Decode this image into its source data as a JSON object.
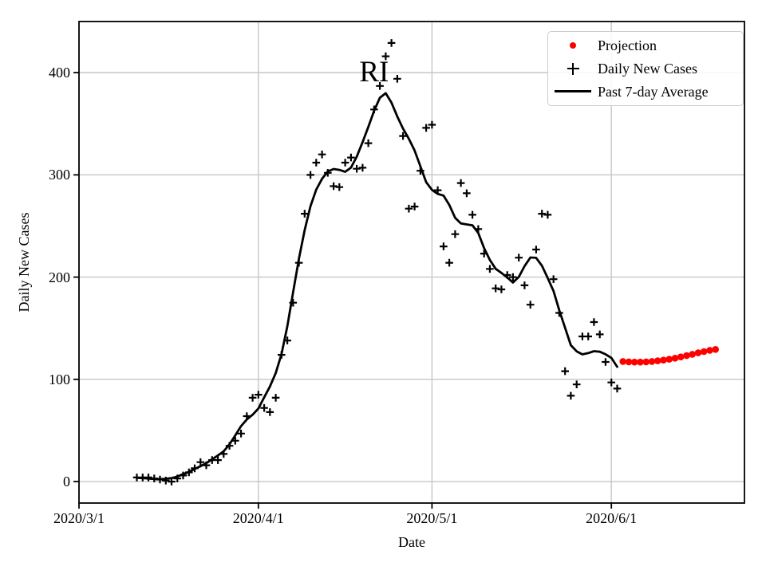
{
  "figure": {
    "background": "#ffffff"
  },
  "chart_data": {
    "type": "line",
    "annotation": {
      "text": "RI",
      "date": "2020-04-21",
      "value": 400
    },
    "xlabel": "Date",
    "ylabel": "Daily New Cases",
    "xlim": [
      "2020-03-01",
      "2020-06-24"
    ],
    "ylim": [
      -21,
      450
    ],
    "grid": true,
    "x_ticks": [
      {
        "date": "2020-03-01",
        "label": "2020/3/1"
      },
      {
        "date": "2020-04-01",
        "label": "2020/4/1"
      },
      {
        "date": "2020-05-01",
        "label": "2020/5/1"
      },
      {
        "date": "2020-06-01",
        "label": "2020/6/1"
      }
    ],
    "y_ticks": [
      0,
      100,
      200,
      300,
      400
    ],
    "legend": {
      "position": "upper right",
      "entries": [
        {
          "label": "Projection",
          "marker": "red-dot"
        },
        {
          "label": "Daily New Cases",
          "marker": "black-plus"
        },
        {
          "label": "Past 7-day Average",
          "marker": "black-line"
        }
      ]
    },
    "colors": {
      "projection": "#ff0000",
      "series": "#000000",
      "grid": "#c6c6c6"
    },
    "series": {
      "daily_new_cases": {
        "name": "Daily New Cases",
        "marker": "plus",
        "start_date": "2020-03-11",
        "values": [
          4,
          4,
          4,
          3,
          2,
          1,
          0,
          3,
          6,
          9,
          13,
          19,
          16,
          21,
          21,
          27,
          35,
          40,
          47,
          64,
          82,
          85,
          72,
          68,
          82,
          124,
          138,
          175,
          214,
          262,
          300,
          312,
          320,
          302,
          289,
          288,
          312,
          317,
          306,
          307,
          331,
          364,
          387,
          416,
          429,
          394,
          338,
          267,
          269,
          304,
          346,
          349,
          285,
          230,
          214,
          242,
          292,
          282,
          261,
          247,
          223,
          208,
          189,
          188,
          202,
          200,
          219,
          192,
          173,
          227,
          262,
          261,
          198,
          165,
          108,
          84,
          95,
          142,
          142,
          156,
          144,
          117,
          97,
          91
        ]
      },
      "past_7day_average": {
        "name": "Past 7-day Average",
        "derived": "centered_7_day_average_of_daily_new_cases"
      },
      "projection": {
        "name": "Projection",
        "marker": "dot",
        "start_date": "2020-06-03",
        "values": [
          117.5,
          117.1,
          116.9,
          116.9,
          117.1,
          117.5,
          118.1,
          118.8,
          119.7,
          120.7,
          121.9,
          123.2,
          124.5,
          125.9,
          127.2,
          128.4,
          129.3
        ]
      }
    }
  }
}
